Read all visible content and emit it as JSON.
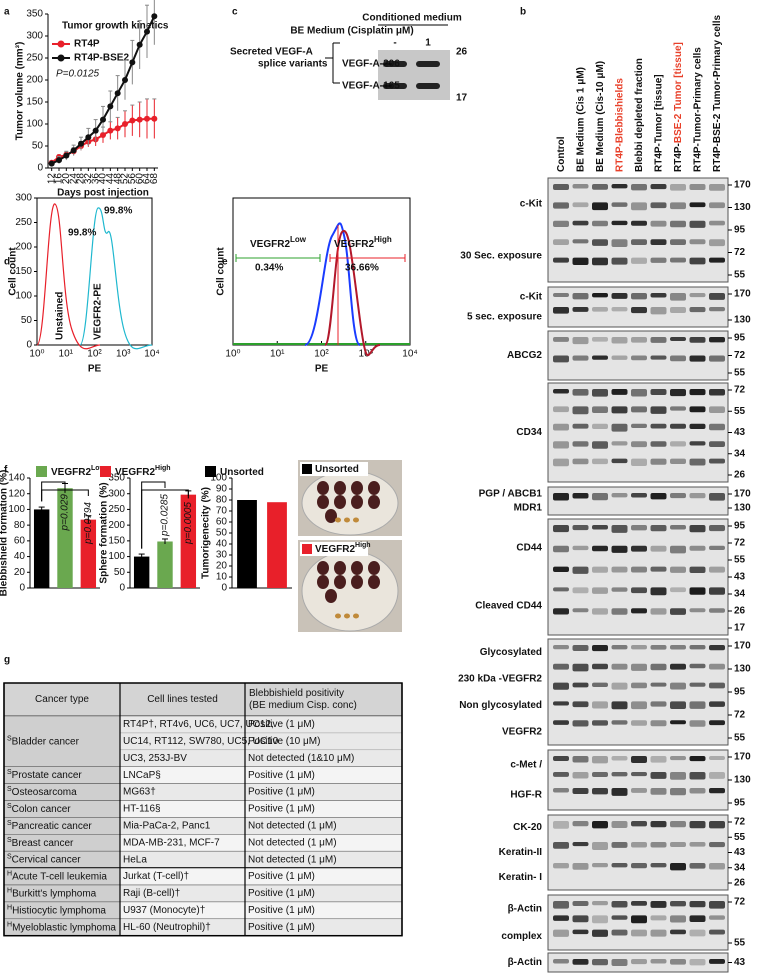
{
  "panel_labels": [
    "a",
    "b",
    "c",
    "d",
    "e",
    "f",
    "g"
  ],
  "chart_data": [
    {
      "type": "line",
      "title": "Tumor growth kinetics",
      "y_label": "Tumor volume (mm³)",
      "x_label": "Days post injection",
      "annotation": "P=0.0125",
      "x": [
        12,
        16,
        20,
        24,
        28,
        32,
        36,
        40,
        44,
        48,
        52,
        56,
        60,
        64,
        68
      ],
      "xlim": [
        10,
        70
      ],
      "xticks": [
        12,
        16,
        20,
        24,
        28,
        32,
        36,
        40,
        44,
        48,
        52,
        56,
        60,
        64,
        68
      ],
      "ylim": [
        0,
        350
      ],
      "yticks": [
        0,
        50,
        100,
        150,
        200,
        250,
        300,
        350
      ],
      "legend": "upper left",
      "series": [
        {
          "name": "RT4P",
          "color": "#e8202a",
          "values": [
            12,
            25,
            30,
            38,
            50,
            60,
            65,
            75,
            85,
            90,
            100,
            108,
            110,
            112,
            112
          ],
          "errors": [
            3,
            5,
            6,
            8,
            10,
            12,
            15,
            18,
            20,
            25,
            30,
            35,
            40,
            45,
            45
          ]
        },
        {
          "name": "RT4P-BSE2",
          "color": "#111111",
          "values": [
            10,
            18,
            28,
            40,
            55,
            70,
            85,
            110,
            140,
            170,
            200,
            240,
            280,
            310,
            345
          ],
          "errors": [
            5,
            8,
            10,
            12,
            15,
            20,
            25,
            30,
            35,
            40,
            45,
            50,
            55,
            60,
            65
          ]
        }
      ]
    },
    {
      "type": "bar",
      "y_label": "Blebbishield formation (%)",
      "categories": [
        null,
        null,
        null
      ],
      "values": [
        100,
        127,
        87
      ],
      "errors": [
        3,
        6,
        5
      ],
      "colors": [
        "#000000",
        "#6aa84f",
        "#e8202a"
      ],
      "ylim": [
        0,
        140
      ],
      "yticks": [
        0,
        20,
        40,
        60,
        80,
        100,
        120,
        140
      ],
      "annotations": [
        "p=0.029",
        "p=0.0794"
      ]
    },
    {
      "type": "bar",
      "y_label": "Sphere formation (%)",
      "categories": [
        null,
        null,
        null
      ],
      "values": [
        100,
        148,
        297
      ],
      "errors": [
        8,
        8,
        12
      ],
      "colors": [
        "#000000",
        "#6aa84f",
        "#e8202a"
      ],
      "ylim": [
        0,
        350
      ],
      "yticks": [
        0,
        50,
        100,
        150,
        200,
        250,
        300,
        350
      ],
      "annotations": [
        "p=0.0285",
        "p=0.0005"
      ]
    },
    {
      "type": "bar",
      "y_label": "Tumorigenecity (%)",
      "categories": [
        null,
        null
      ],
      "values": [
        80,
        78
      ],
      "colors": [
        "#000000",
        "#e8202a"
      ],
      "ylim": [
        0,
        100
      ],
      "yticks": [
        0,
        10,
        20,
        30,
        40,
        50,
        60,
        70,
        80,
        90,
        100
      ]
    }
  ],
  "legend_f": [
    {
      "text": "VEGFR2",
      "sup": "Low",
      "color": "#6aa84f"
    },
    {
      "text": "VEGFR2",
      "sup": "High",
      "color": "#e8202a"
    },
    {
      "text": "Unsorted",
      "color": "#000000"
    }
  ],
  "images_f": [
    {
      "text": "Unsorted",
      "color": "#000000"
    },
    {
      "text": "VEGFR2",
      "sup": "High",
      "color": "#e8202a"
    }
  ],
  "blot_c": {
    "header": "Conditioned medium",
    "condition": "BE Medium (Cisplatin μM)",
    "lanes": [
      "-",
      "1"
    ],
    "title": [
      "Secreted VEGF-A",
      "splice variants"
    ],
    "bands": [
      "VEGF-A-206",
      "VEGF-A-165"
    ],
    "mw": [
      "26",
      "17"
    ]
  },
  "flow_d": {
    "y_label": "Cell count",
    "x_label": "PE",
    "ylim": [
      0,
      300
    ],
    "yticks": [
      0,
      50,
      100,
      150,
      200,
      250,
      300
    ],
    "xticks": [
      "10⁰",
      "10¹",
      "10²",
      "10³",
      "10⁴"
    ],
    "gates": [
      {
        "text": "99.8%",
        "color": "#e8202a"
      },
      {
        "text": "99.8%",
        "color": "#1fb8cf"
      }
    ],
    "curves": [
      "Unstained",
      "VEGFR2-PE"
    ]
  },
  "flow_e": {
    "y_label": "Cell count",
    "x_label": "PE",
    "xticks": [
      "10⁰",
      "10¹",
      "10²",
      "10³",
      "10⁴"
    ],
    "gates": [
      {
        "text": "VEGFR2",
        "sup": "Low",
        "pct": "0.34%",
        "color": "#2ca02c"
      },
      {
        "text": "VEGFR2",
        "sup": "High",
        "pct": "36.66%",
        "color": "#e8202a"
      }
    ]
  },
  "blot_b": {
    "lanes": [
      {
        "parts": [
          "Control"
        ],
        "colors": [
          "#111111"
        ]
      },
      {
        "parts": [
          "BE Medium (Cis 1 μM)"
        ],
        "colors": [
          "#111111"
        ]
      },
      {
        "parts": [
          "BE Medium (Cis-10 μM)"
        ],
        "colors": [
          "#111111"
        ]
      },
      {
        "parts": [
          "RT4P-Blebbishields"
        ],
        "colors": [
          "#e8402a"
        ]
      },
      {
        "parts": [
          "Blebbi depleted fraction"
        ],
        "colors": [
          "#111111"
        ]
      },
      {
        "parts": [
          "RT4P-Tumor [tissue]"
        ],
        "colors": [
          "#111111"
        ]
      },
      {
        "parts": [
          "RT4P-",
          "BSE-2 Tumor [tissue]"
        ],
        "colors": [
          "#111111",
          "#e8402a"
        ]
      },
      {
        "parts": [
          "RT4P-Tumor-Primary cells"
        ],
        "colors": [
          "#111111"
        ]
      },
      {
        "parts": [
          "RT4P-BSE-2 Tumor-Primary cells"
        ],
        "colors": [
          "#111111"
        ]
      }
    ],
    "blots": [
      {
        "labels": [
          "c-Kit",
          "30 Sec. exposure"
        ],
        "mw": [
          "170",
          "130",
          "95",
          "72",
          "55"
        ]
      },
      {
        "labels": [
          "c-Kit",
          "5 sec. exposure"
        ],
        "mw": [
          "170",
          "130"
        ]
      },
      {
        "labels": [
          "ABCG2"
        ],
        "mw": [
          "95",
          "72",
          "55"
        ]
      },
      {
        "labels": [
          "CD34"
        ],
        "mw": [
          "72",
          "55",
          "43",
          "34",
          "26"
        ]
      },
      {
        "labels": [
          "PGP / ABCB1",
          "MDR1"
        ],
        "mw": [
          "170",
          "130"
        ]
      },
      {
        "labels": [
          "CD44",
          "Cleaved CD44"
        ],
        "mw": [
          "95",
          "72",
          "55",
          "43",
          "34",
          "26",
          "17"
        ]
      },
      {
        "labels": [
          "Glycosylated",
          "230 kDa -VEGFR2",
          "Non glycosylated",
          "VEGFR2"
        ],
        "mw": [
          "170",
          "130",
          "95",
          "72",
          "55"
        ]
      },
      {
        "labels": [
          "c-Met /",
          "HGF-R"
        ],
        "mw": [
          "170",
          "130",
          "95"
        ]
      },
      {
        "labels": [
          "CK-20",
          "Keratin-II",
          "Keratin- I"
        ],
        "mw": [
          "72",
          "55",
          "43",
          "34",
          "26"
        ]
      },
      {
        "labels": [
          "β-Actin",
          "complex"
        ],
        "mw": [
          "72",
          "55"
        ]
      },
      {
        "labels": [
          "β-Actin"
        ],
        "mw": [
          "43"
        ]
      }
    ]
  },
  "table": {
    "header": [
      [
        "Cancer type"
      ],
      [
        "Cell lines tested"
      ],
      [
        "Blebbishield positivity",
        "(BE medium Cisp. conc)"
      ]
    ],
    "rows": [
      {
        "sup": "S",
        "type": "Bladder cancer",
        "lines": [
          "RT4P†, RT4v6, UC6, UC7, UC12,",
          "UC14, RT112, SW780, UC5, UC10",
          "UC3, 253J-BV"
        ],
        "results": [
          "Positive (1 μM)",
          "Positive (10 μM)",
          "Not detected (1&10 μM)"
        ]
      },
      {
        "sup": "S",
        "type": "Prostate cancer",
        "lines": [
          "LNCaP§"
        ],
        "results": [
          "Positive (1 μM)"
        ]
      },
      {
        "sup": "S",
        "type": "Osteosarcoma",
        "lines": [
          "MG63†"
        ],
        "results": [
          "Positive (1 μM)"
        ]
      },
      {
        "sup": "S",
        "type": "Colon cancer",
        "lines": [
          "HT-116§"
        ],
        "results": [
          "Positive (1 μM)"
        ]
      },
      {
        "sup": "S",
        "type": "Pancreatic cancer",
        "lines": [
          "Mia-PaCa-2, Panc1"
        ],
        "results": [
          "Not detected (1 μM)"
        ]
      },
      {
        "sup": "S",
        "type": "Breast cancer",
        "lines": [
          "MDA-MB-231, MCF-7"
        ],
        "results": [
          "Not detected (1 μM)"
        ]
      },
      {
        "sup": "S",
        "type": "Cervical cancer",
        "lines": [
          "HeLa"
        ],
        "results": [
          "Not detected (1 μM)"
        ]
      },
      {
        "sup": "H",
        "type": "Acute T-cell leukemia",
        "lines": [
          "Jurkat (T-cell)†"
        ],
        "results": [
          "Positive (1 μM)"
        ]
      },
      {
        "sup": "H",
        "type": "Burkitt's lymphoma",
        "lines": [
          "Raji (B-cell)†"
        ],
        "results": [
          "Positive (1 μM)"
        ]
      },
      {
        "sup": "H",
        "type": "Histiocytic lymphoma",
        "lines": [
          "U937 (Monocyte)†"
        ],
        "results": [
          "Positive (1 μM)"
        ]
      },
      {
        "sup": "H",
        "type": "Myeloblastic lymphoma",
        "lines": [
          "HL-60 (Neutrophil)†"
        ],
        "results": [
          "Positive (1 μM)"
        ]
      }
    ]
  }
}
